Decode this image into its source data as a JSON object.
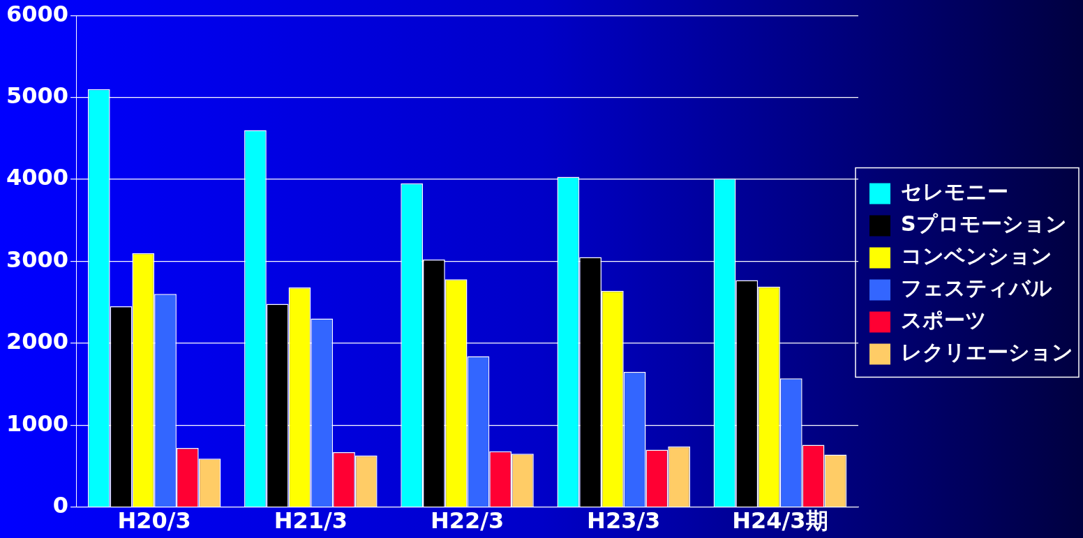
{
  "chart_data": {
    "type": "bar",
    "categories": [
      "H20/3",
      "H21/3",
      "H22/3",
      "H23/3",
      "H24/3期"
    ],
    "series": [
      {
        "name": "セレモニー",
        "color": "#00ffff",
        "values": [
          5100,
          4600,
          3950,
          4030,
          4010
        ]
      },
      {
        "name": "Sプロモーション",
        "color": "#000000",
        "values": [
          2450,
          2480,
          3020,
          3050,
          2770
        ]
      },
      {
        "name": "コンベンション",
        "color": "#ffff00",
        "values": [
          3100,
          2680,
          2780,
          2640,
          2690
        ]
      },
      {
        "name": "フェスティバル",
        "color": "#3366ff",
        "values": [
          2600,
          2300,
          1840,
          1650,
          1570
        ]
      },
      {
        "name": "スポーツ",
        "color": "#ff0033",
        "values": [
          720,
          670,
          680,
          700,
          760
        ]
      },
      {
        "name": "レクリエーション",
        "color": "#ffcc66",
        "values": [
          590,
          630,
          650,
          740,
          640
        ]
      }
    ],
    "ylim": [
      0,
      6000
    ],
    "yticks": [
      0,
      1000,
      2000,
      3000,
      4000,
      5000,
      6000
    ],
    "grid": "y",
    "legend": "right"
  }
}
